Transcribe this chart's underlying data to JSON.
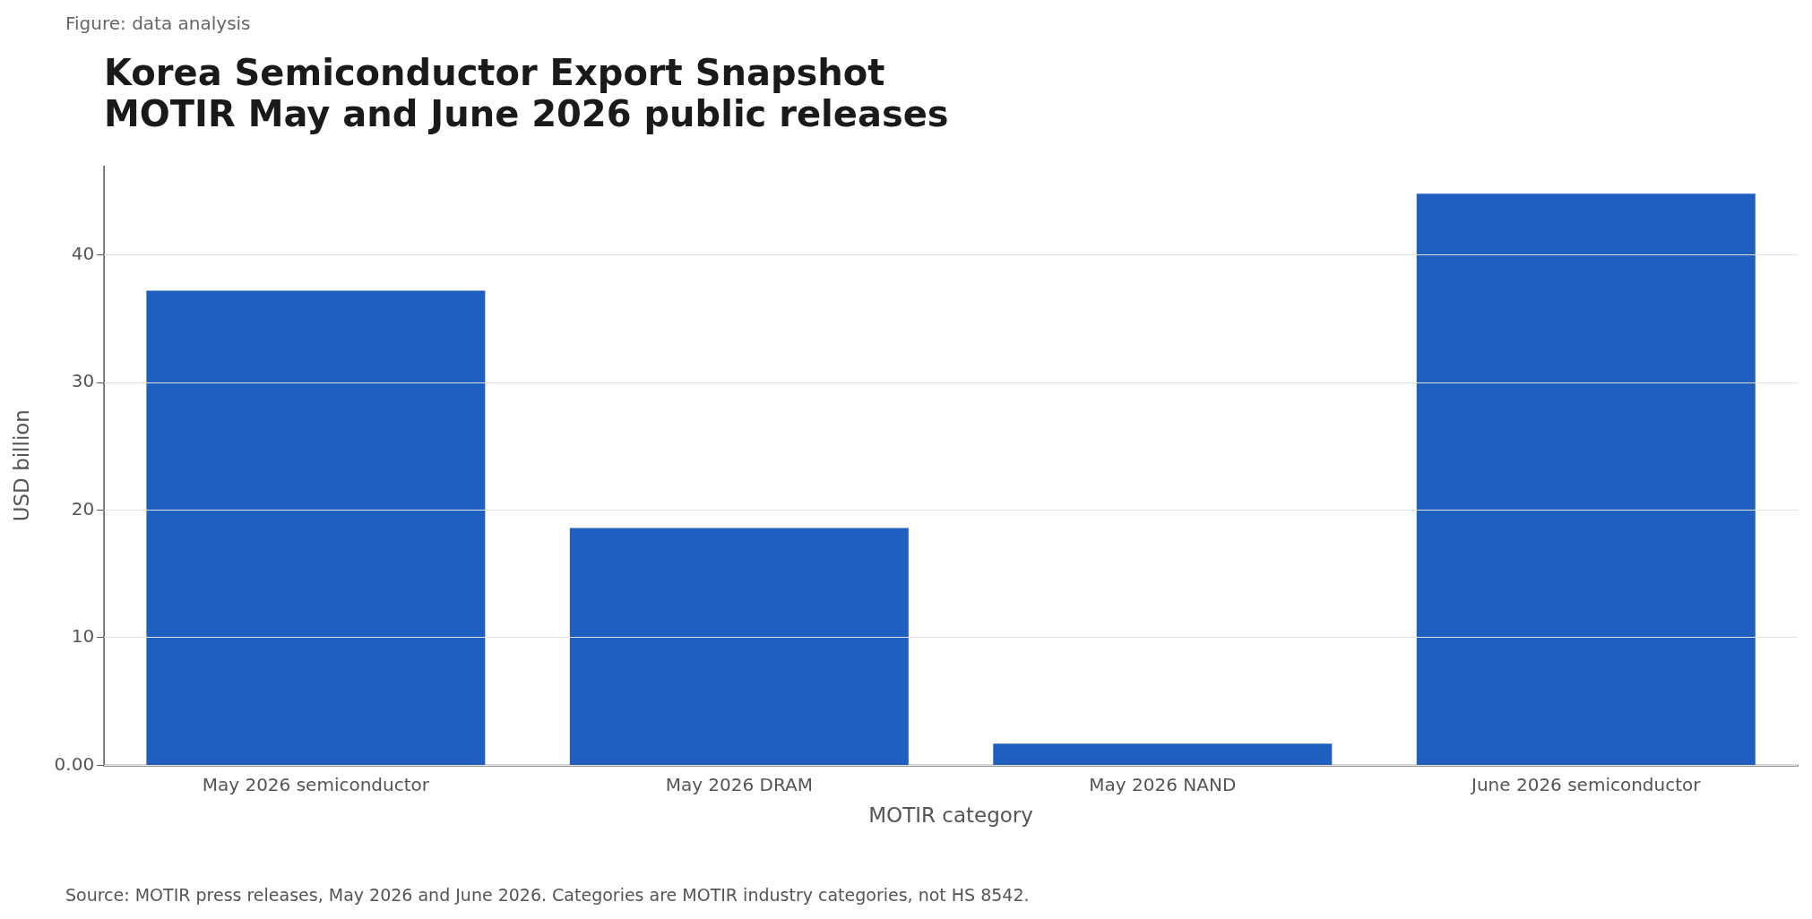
{
  "chart_data": {
    "type": "bar",
    "title": "Korea Semiconductor Export Snapshot",
    "subtitle": "MOTIR May and June 2026 public releases",
    "xlabel": "MOTIR category",
    "ylabel": "USD billion",
    "categories": [
      "May 2026 semiconductor",
      "May 2026 DRAM",
      "May 2026 NAND",
      "June 2026 semiconductor"
    ],
    "values": [
      37.2,
      18.6,
      1.7,
      44.8
    ],
    "color": "#1f5fbf",
    "ylim": [
      0,
      47
    ],
    "yticks": [
      {
        "value": 0,
        "label": "0.00"
      },
      10,
      20,
      30,
      40
    ],
    "grid": "y",
    "annotations": [
      "Figure: data analysis",
      "Source: MOTIR press releases, May 2026 and June 2026. Categories are MOTIR industry categories, not HS 8542."
    ]
  }
}
